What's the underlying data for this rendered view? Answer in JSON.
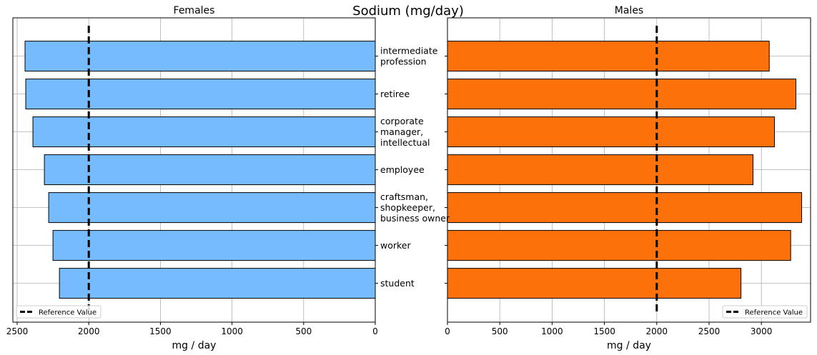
{
  "chart_data": [
    {
      "type": "bar",
      "orientation": "horizontal",
      "title": "Females",
      "xlabel": "mg / day",
      "ylabel": "",
      "categories": [
        "intermediate\nprofession",
        "retiree",
        "corporate\nmanager,\nintellectual",
        "employee",
        "craftsman,\nshopkeeper,\nbusiness owner",
        "worker",
        "student"
      ],
      "values": [
        2445,
        2440,
        2390,
        2310,
        2280,
        2250,
        2205
      ],
      "xlim": [
        2530,
        0
      ],
      "xticks": [
        2500,
        2000,
        1500,
        1000,
        500,
        0
      ],
      "xaxis_inverted": true,
      "reference_value": 2000,
      "reference_label": "Reference Value",
      "legend": "lower-left",
      "grid": true,
      "bar_color": "#77BBFF"
    },
    {
      "type": "bar",
      "orientation": "horizontal",
      "title": "Males",
      "xlabel": "mg / day",
      "ylabel": "",
      "categories": [
        "intermediate\nprofession",
        "retiree",
        "corporate\nmanager,\nintellectual",
        "employee",
        "craftsman,\nshopkeeper,\nbusiness owner",
        "worker",
        "student"
      ],
      "values": [
        3075,
        3330,
        3125,
        2920,
        3385,
        3280,
        2805
      ],
      "xlim": [
        0,
        3470
      ],
      "xticks": [
        0,
        500,
        1000,
        1500,
        2000,
        2500,
        3000
      ],
      "reference_value": 2000,
      "reference_label": "Reference Value",
      "legend": "lower-right",
      "grid": true,
      "bar_color": "#FC710A"
    }
  ],
  "suptitle": "Sodium (mg/day)"
}
